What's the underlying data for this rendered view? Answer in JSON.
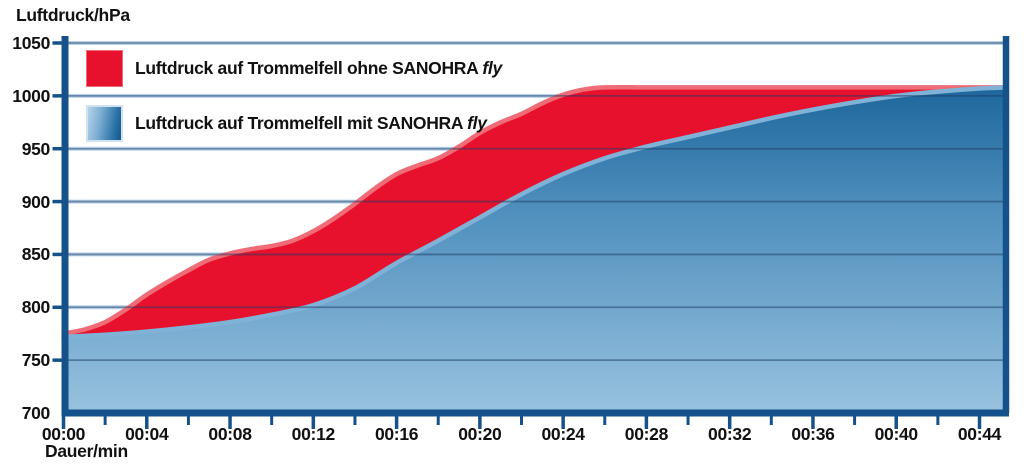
{
  "axis_titles": {
    "y": "Luftdruck/hPa",
    "x": "Dauer/min"
  },
  "legend": {
    "position": "top-left",
    "items": [
      {
        "swatch": "red-solid",
        "text": "Luftdruck auf Trommelfell ohne SANOHRA",
        "italic": "fly"
      },
      {
        "swatch": "blue-gradient",
        "text": "Luftdruck auf Trommelfell mit SANOHRA",
        "italic": "fly"
      }
    ]
  },
  "colors": {
    "red_fill": "#e8112d",
    "red_edge": "#ef6b76",
    "blue_edge": "#7fb2d6",
    "blue_gradient_top": "#0b5890",
    "blue_gradient_mid": "#4f8fbd",
    "blue_gradient_bottom": "#98c2df",
    "axis": "#15528c",
    "grid_halo": "#b9d2e9",
    "grid_core": "rgba(30,60,102,0.5)",
    "text": "#111111"
  },
  "chart_data": {
    "type": "area",
    "title": "",
    "xlabel": "Dauer/min",
    "ylabel": "Luftdruck/hPa",
    "ylim": [
      700,
      1050
    ],
    "xlim_minutes": [
      0,
      45.3
    ],
    "grid": "horizontal",
    "yticks": [
      700,
      750,
      800,
      850,
      900,
      950,
      1000,
      1050
    ],
    "xticks_major": {
      "minutes": [
        0,
        4,
        8,
        12,
        16,
        20,
        24,
        28,
        32,
        36,
        40,
        44
      ],
      "labels": [
        "00:00",
        "00:04",
        "00:08",
        "00:12",
        "00:16",
        "00:20",
        "00:24",
        "00:28",
        "00:32",
        "00:36",
        "00:40",
        "00:44"
      ]
    },
    "xticks_minor_minutes": [
      2,
      6,
      10,
      14,
      18,
      22,
      26,
      30,
      34,
      38,
      42
    ],
    "series": [
      {
        "name": "Luftdruck auf Trommelfell ohne SANOHRA fly",
        "style": "red-area",
        "points": [
          [
            0,
            775
          ],
          [
            1,
            779
          ],
          [
            2,
            786
          ],
          [
            3,
            798
          ],
          [
            4,
            812
          ],
          [
            5,
            824
          ],
          [
            6,
            835
          ],
          [
            7,
            845
          ],
          [
            8,
            851
          ],
          [
            9,
            855
          ],
          [
            10,
            858
          ],
          [
            11,
            863
          ],
          [
            12,
            872
          ],
          [
            13,
            884
          ],
          [
            14,
            898
          ],
          [
            15,
            913
          ],
          [
            16,
            926
          ],
          [
            17,
            934
          ],
          [
            18,
            941
          ],
          [
            19,
            952
          ],
          [
            20,
            965
          ],
          [
            21,
            975
          ],
          [
            22,
            983
          ],
          [
            23,
            993
          ],
          [
            24,
            1001
          ],
          [
            25,
            1006
          ],
          [
            26,
            1008
          ],
          [
            28,
            1008
          ],
          [
            30,
            1008
          ],
          [
            32,
            1008
          ],
          [
            34,
            1008
          ],
          [
            36,
            1008
          ],
          [
            38,
            1008
          ],
          [
            40,
            1008
          ],
          [
            42,
            1008
          ],
          [
            44,
            1008
          ],
          [
            45.3,
            1008
          ]
        ]
      },
      {
        "name": "Luftdruck auf Trommelfell mit SANOHRA fly",
        "style": "blue-gradient-area",
        "points": [
          [
            0,
            772
          ],
          [
            2,
            774
          ],
          [
            4,
            777
          ],
          [
            6,
            781
          ],
          [
            8,
            786
          ],
          [
            10,
            793
          ],
          [
            12,
            802
          ],
          [
            14,
            818
          ],
          [
            16,
            842
          ],
          [
            18,
            863
          ],
          [
            20,
            885
          ],
          [
            22,
            907
          ],
          [
            24,
            926
          ],
          [
            26,
            941
          ],
          [
            28,
            952
          ],
          [
            30,
            961
          ],
          [
            32,
            970
          ],
          [
            34,
            979
          ],
          [
            36,
            987
          ],
          [
            38,
            994
          ],
          [
            40,
            1000
          ],
          [
            42,
            1004
          ],
          [
            44,
            1007
          ],
          [
            45.3,
            1008
          ]
        ]
      }
    ]
  }
}
